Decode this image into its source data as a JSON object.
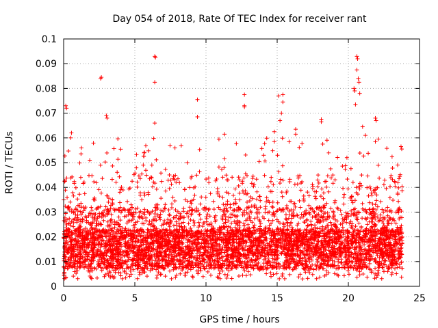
{
  "chart_data": {
    "type": "scatter",
    "title": "Day 054 of 2018, Rate Of TEC Index for receiver rant",
    "xlabel": "GPS time / hours",
    "ylabel": "ROTI / TECUs",
    "xlim": [
      0,
      25
    ],
    "ylim": [
      0,
      0.1
    ],
    "x_ticks": [
      0,
      5,
      10,
      15,
      20,
      25
    ],
    "x_tick_labels": [
      "0",
      "5",
      "10",
      "15",
      "20",
      "25"
    ],
    "y_ticks": [
      0,
      0.01,
      0.02,
      0.03,
      0.04,
      0.05,
      0.06,
      0.07,
      0.08,
      0.09,
      0.1
    ],
    "y_tick_labels": [
      "0",
      "0.01",
      "0.02",
      "0.03",
      "0.04",
      "0.05",
      "0.06",
      "0.07",
      "0.08",
      "0.09",
      "0.1"
    ],
    "grid": true,
    "marker": "+",
    "color": "#ff0000",
    "data_extent_x": [
      0,
      23.8
    ],
    "outliers": [
      {
        "x": 0.15,
        "y": 0.073
      },
      {
        "x": 0.2,
        "y": 0.072
      },
      {
        "x": 0.55,
        "y": 0.062
      },
      {
        "x": 0.5,
        "y": 0.06
      },
      {
        "x": 2.6,
        "y": 0.084
      },
      {
        "x": 2.65,
        "y": 0.0845
      },
      {
        "x": 3.0,
        "y": 0.069
      },
      {
        "x": 3.05,
        "y": 0.068
      },
      {
        "x": 6.4,
        "y": 0.093
      },
      {
        "x": 6.45,
        "y": 0.0925
      },
      {
        "x": 6.4,
        "y": 0.0825
      },
      {
        "x": 6.4,
        "y": 0.066
      },
      {
        "x": 9.4,
        "y": 0.0755
      },
      {
        "x": 9.4,
        "y": 0.0685
      },
      {
        "x": 11.3,
        "y": 0.0615
      },
      {
        "x": 12.7,
        "y": 0.0775
      },
      {
        "x": 12.7,
        "y": 0.0725
      },
      {
        "x": 12.7,
        "y": 0.073
      },
      {
        "x": 14.8,
        "y": 0.0625
      },
      {
        "x": 14.8,
        "y": 0.0585
      },
      {
        "x": 15.1,
        "y": 0.077
      },
      {
        "x": 15.4,
        "y": 0.0775
      },
      {
        "x": 15.4,
        "y": 0.0745
      },
      {
        "x": 15.3,
        "y": 0.07
      },
      {
        "x": 15.2,
        "y": 0.067
      },
      {
        "x": 16.3,
        "y": 0.0635
      },
      {
        "x": 16.3,
        "y": 0.0615
      },
      {
        "x": 18.1,
        "y": 0.0675
      },
      {
        "x": 18.1,
        "y": 0.0665
      },
      {
        "x": 18.2,
        "y": 0.0575
      },
      {
        "x": 20.4,
        "y": 0.08
      },
      {
        "x": 20.45,
        "y": 0.079
      },
      {
        "x": 20.5,
        "y": 0.0735
      },
      {
        "x": 20.6,
        "y": 0.093
      },
      {
        "x": 20.65,
        "y": 0.092
      },
      {
        "x": 20.6,
        "y": 0.0875
      },
      {
        "x": 20.7,
        "y": 0.084
      },
      {
        "x": 20.75,
        "y": 0.0825
      },
      {
        "x": 20.8,
        "y": 0.078
      },
      {
        "x": 21.0,
        "y": 0.0645
      },
      {
        "x": 21.2,
        "y": 0.061
      },
      {
        "x": 21.9,
        "y": 0.068
      },
      {
        "x": 21.95,
        "y": 0.067
      },
      {
        "x": 21.9,
        "y": 0.0585
      },
      {
        "x": 23.7,
        "y": 0.0565
      },
      {
        "x": 23.75,
        "y": 0.0555
      }
    ]
  }
}
